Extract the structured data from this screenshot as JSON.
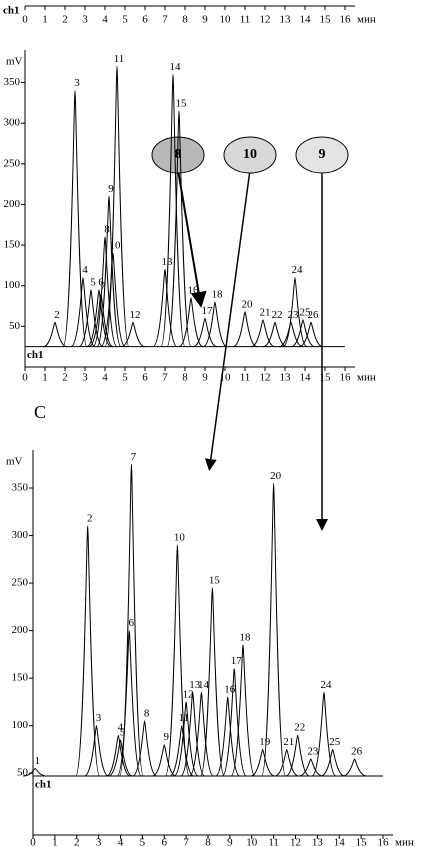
{
  "chart_data": [
    {
      "type": "chromatogram",
      "channel": "ch1",
      "x_label": "мин",
      "xlim": [
        0,
        16
      ],
      "xticks": [
        0,
        1,
        2,
        3,
        4,
        5,
        6,
        7,
        8,
        9,
        10,
        11,
        12,
        13,
        14,
        15,
        16
      ]
    },
    {
      "type": "chromatogram",
      "channel": "ch1",
      "y_label": "mV",
      "x_label": "мин",
      "color": "#000000",
      "xlim": [
        0,
        16
      ],
      "xticks": [
        0,
        1,
        2,
        3,
        4,
        5,
        6,
        7,
        8,
        9,
        10,
        11,
        12,
        13,
        14,
        15,
        16
      ],
      "ylim": [
        0,
        390
      ],
      "yticks": [
        50,
        100,
        150,
        200,
        250,
        300,
        350
      ],
      "baseline": 25,
      "peak_labels": [
        "2",
        "3",
        "4",
        "5",
        "6",
        "7",
        "8",
        "9",
        "10",
        "11",
        "12",
        "13",
        "14",
        "15",
        "16",
        "17",
        "18",
        "20",
        "21",
        "22",
        "23",
        "24",
        "25",
        "26"
      ],
      "peak_x": [
        1.5,
        2.5,
        2.9,
        3.3,
        3.7,
        3.8,
        4.0,
        4.2,
        4.4,
        4.6,
        5.4,
        7.0,
        7.4,
        7.7,
        8.3,
        9.0,
        9.5,
        11.0,
        11.9,
        12.5,
        13.3,
        13.5,
        13.9,
        14.3
      ],
      "values": [
        55,
        340,
        110,
        95,
        95,
        90,
        160,
        210,
        140,
        370,
        55,
        120,
        360,
        315,
        85,
        60,
        80,
        68,
        58,
        55,
        55,
        110,
        58,
        55
      ],
      "annotations": [
        "8",
        "10",
        "9"
      ]
    },
    {
      "type": "chromatogram",
      "panel_label": "C",
      "channel": "ch1",
      "y_label": "mV",
      "x_label": "мин",
      "color": "#000000",
      "xlim": [
        0,
        16
      ],
      "xticks": [
        0,
        1,
        2,
        3,
        4,
        5,
        6,
        7,
        8,
        9,
        10,
        11,
        12,
        13,
        14,
        15,
        16
      ],
      "ylim": [
        -15,
        390
      ],
      "yticks": [
        50,
        100,
        150,
        200,
        250,
        300,
        350
      ],
      "baseline": 47,
      "peak_labels": [
        "1",
        "2",
        "3",
        "4",
        "5",
        "6",
        "7",
        "8",
        "9",
        "10",
        "11",
        "12",
        "13",
        "14",
        "15",
        "16",
        "17",
        "18",
        "19",
        "20",
        "21",
        "22",
        "23",
        "24",
        "25",
        "26"
      ],
      "peak_x": [
        0.1,
        2.5,
        2.9,
        3.9,
        4.0,
        4.4,
        4.5,
        5.1,
        6.0,
        6.6,
        6.8,
        7.0,
        7.3,
        7.7,
        8.2,
        8.9,
        9.2,
        9.6,
        10.5,
        11.0,
        11.6,
        12.1,
        12.7,
        13.3,
        13.7,
        14.7
      ],
      "values": [
        55,
        310,
        100,
        90,
        85,
        200,
        375,
        105,
        80,
        290,
        100,
        125,
        135,
        135,
        245,
        130,
        160,
        185,
        75,
        355,
        75,
        90,
        65,
        135,
        75,
        65
      ]
    }
  ]
}
